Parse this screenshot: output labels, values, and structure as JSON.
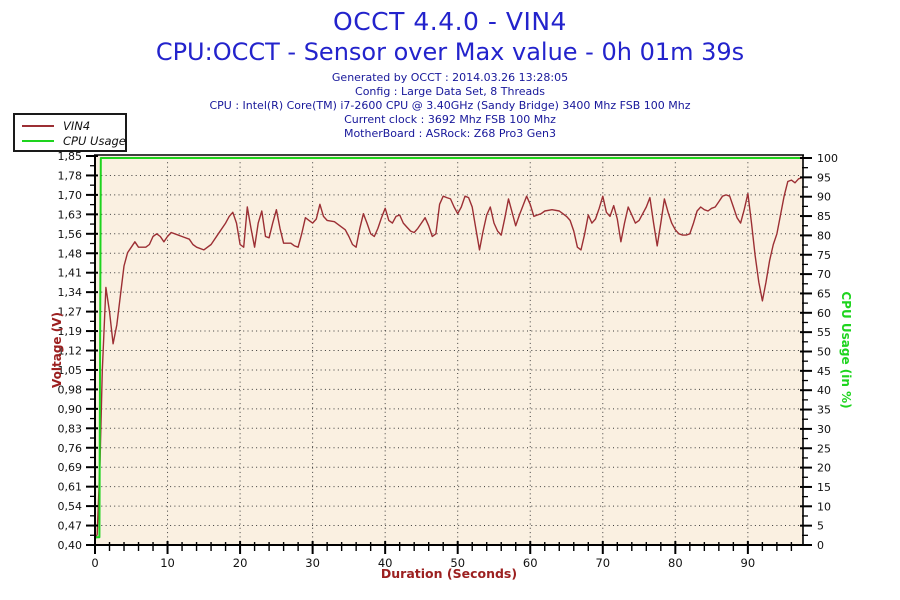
{
  "header": {
    "title": "OCCT 4.4.0 - VIN4",
    "subtitle": "CPU:OCCT - Sensor over Max value - 0h 01m 39s",
    "info_lines": [
      "Generated by OCCT : 2014.03.26 13:28:05",
      "Config : Large Data Set, 8 Threads",
      "CPU : Intel(R) Core(TM) i7-2600 CPU @ 3.40GHz (Sandy Bridge) 3400 Mhz FSB 100 Mhz",
      "Current clock : 3692 Mhz FSB 100 Mhz",
      "MotherBoard : ASRock: Z68 Pro3 Gen3"
    ]
  },
  "legend": {
    "items": [
      {
        "label": "VIN4",
        "color": "#9c2f34"
      },
      {
        "label": "CPU Usage",
        "color": "#1ed41e"
      }
    ]
  },
  "colors": {
    "title_blue": "#2323cc",
    "info_navy": "#17179a",
    "plot_bg": "#faf0e1",
    "grid": "#3c3c3c",
    "axis_black": "#000000",
    "tick_text": "#111111",
    "axis_label_red": "#9c2020",
    "vin4_red": "#9c2f34",
    "cpu_green": "#1ed41e"
  },
  "chart_data": {
    "type": "line",
    "title": "OCCT 4.4.0 - VIN4",
    "xlabel": "Duration (Seconds)",
    "ylabel_left": "Voltage (V)",
    "ylabel_right": "CPU Usage (in %)",
    "grid": "dotted",
    "legend_position": "top-left",
    "xlim": [
      0,
      97.6
    ],
    "x_major_ticks": [
      0,
      10,
      20,
      30,
      40,
      50,
      60,
      70,
      80,
      90
    ],
    "x_tick_labels": [
      "0",
      "10",
      "20",
      "30",
      "40",
      "50",
      "60",
      "70",
      "80",
      "90"
    ],
    "x_minor_step": 2,
    "left_axis": {
      "min": 0.4,
      "max": 1.85,
      "tick_labels": [
        "1,85",
        "1,78",
        "1,70",
        "1,63",
        "1,56",
        "1,48",
        "1,41",
        "1,34",
        "1,27",
        "1,19",
        "1,12",
        "1,05",
        "0,98",
        "0,90",
        "0,83",
        "0,76",
        "0,69",
        "0,61",
        "0,54",
        "0,47",
        "0,40"
      ]
    },
    "right_axis": {
      "min": 0,
      "max": 100,
      "tick_labels": [
        "100",
        "95",
        "90",
        "85",
        "80",
        "75",
        "70",
        "65",
        "60",
        "55",
        "50",
        "45",
        "40",
        "35",
        "30",
        "25",
        "20",
        "15",
        "10",
        "5",
        "0"
      ]
    },
    "series": [
      {
        "name": "VIN4",
        "axis": "left",
        "color": "#9c2f34",
        "width": 1.4,
        "points": [
          [
            0,
            0.42
          ],
          [
            0.3,
            0.44
          ],
          [
            0.7,
            0.72
          ],
          [
            1,
            1.05
          ],
          [
            1.5,
            1.36
          ],
          [
            2,
            1.27
          ],
          [
            2.5,
            1.15
          ],
          [
            3,
            1.22
          ],
          [
            3.5,
            1.33
          ],
          [
            4,
            1.44
          ],
          [
            4.5,
            1.49
          ],
          [
            5,
            1.51
          ],
          [
            5.5,
            1.53
          ],
          [
            6,
            1.51
          ],
          [
            7,
            1.51
          ],
          [
            7.5,
            1.52
          ],
          [
            8,
            1.55
          ],
          [
            8.5,
            1.56
          ],
          [
            9,
            1.55
          ],
          [
            9.5,
            1.53
          ],
          [
            10,
            1.55
          ],
          [
            10.5,
            1.565
          ],
          [
            11,
            1.56
          ],
          [
            12,
            1.55
          ],
          [
            13,
            1.54
          ],
          [
            13.5,
            1.52
          ],
          [
            14,
            1.51
          ],
          [
            15,
            1.5
          ],
          [
            16,
            1.52
          ],
          [
            17,
            1.56
          ],
          [
            18,
            1.6
          ],
          [
            18.5,
            1.625
          ],
          [
            19,
            1.64
          ],
          [
            19.5,
            1.6
          ],
          [
            20,
            1.52
          ],
          [
            20.5,
            1.51
          ],
          [
            21,
            1.66
          ],
          [
            21.5,
            1.58
          ],
          [
            22,
            1.51
          ],
          [
            22.5,
            1.6
          ],
          [
            23,
            1.645
          ],
          [
            23.5,
            1.55
          ],
          [
            24,
            1.545
          ],
          [
            24.5,
            1.6
          ],
          [
            25,
            1.65
          ],
          [
            25.5,
            1.58
          ],
          [
            26,
            1.525
          ],
          [
            27,
            1.525
          ],
          [
            27.5,
            1.515
          ],
          [
            28,
            1.51
          ],
          [
            28.5,
            1.56
          ],
          [
            29,
            1.62
          ],
          [
            29.5,
            1.61
          ],
          [
            30,
            1.6
          ],
          [
            30.5,
            1.615
          ],
          [
            31,
            1.67
          ],
          [
            31.5,
            1.625
          ],
          [
            32,
            1.61
          ],
          [
            33,
            1.605
          ],
          [
            34,
            1.585
          ],
          [
            34.5,
            1.575
          ],
          [
            35,
            1.55
          ],
          [
            35.5,
            1.52
          ],
          [
            36,
            1.51
          ],
          [
            36.5,
            1.58
          ],
          [
            37,
            1.635
          ],
          [
            37.5,
            1.6
          ],
          [
            38,
            1.56
          ],
          [
            38.5,
            1.55
          ],
          [
            39,
            1.58
          ],
          [
            39.5,
            1.62
          ],
          [
            40,
            1.655
          ],
          [
            40.5,
            1.61
          ],
          [
            41,
            1.6
          ],
          [
            41.5,
            1.625
          ],
          [
            42,
            1.63
          ],
          [
            42.5,
            1.6
          ],
          [
            43,
            1.585
          ],
          [
            43.5,
            1.57
          ],
          [
            44,
            1.565
          ],
          [
            44.5,
            1.58
          ],
          [
            45,
            1.6
          ],
          [
            45.5,
            1.62
          ],
          [
            46,
            1.59
          ],
          [
            46.5,
            1.55
          ],
          [
            47,
            1.56
          ],
          [
            47.5,
            1.67
          ],
          [
            48,
            1.7
          ],
          [
            48.5,
            1.695
          ],
          [
            49,
            1.69
          ],
          [
            49.5,
            1.66
          ],
          [
            50,
            1.635
          ],
          [
            50.5,
            1.66
          ],
          [
            51,
            1.7
          ],
          [
            51.5,
            1.695
          ],
          [
            52,
            1.66
          ],
          [
            52.5,
            1.58
          ],
          [
            53,
            1.5
          ],
          [
            53.5,
            1.57
          ],
          [
            54,
            1.63
          ],
          [
            54.5,
            1.66
          ],
          [
            55,
            1.6
          ],
          [
            55.5,
            1.57
          ],
          [
            56,
            1.555
          ],
          [
            56.5,
            1.62
          ],
          [
            57,
            1.69
          ],
          [
            57.5,
            1.64
          ],
          [
            58,
            1.59
          ],
          [
            58.5,
            1.63
          ],
          [
            59,
            1.665
          ],
          [
            59.5,
            1.7
          ],
          [
            60,
            1.67
          ],
          [
            60.5,
            1.625
          ],
          [
            61,
            1.63
          ],
          [
            61.5,
            1.635
          ],
          [
            62,
            1.645
          ],
          [
            63,
            1.65
          ],
          [
            64,
            1.645
          ],
          [
            64.5,
            1.635
          ],
          [
            65,
            1.625
          ],
          [
            65.5,
            1.61
          ],
          [
            66,
            1.57
          ],
          [
            66.5,
            1.51
          ],
          [
            67,
            1.5
          ],
          [
            67.5,
            1.56
          ],
          [
            68,
            1.63
          ],
          [
            68.5,
            1.6
          ],
          [
            69,
            1.615
          ],
          [
            69.5,
            1.655
          ],
          [
            70,
            1.7
          ],
          [
            70.5,
            1.64
          ],
          [
            71,
            1.625
          ],
          [
            71.5,
            1.665
          ],
          [
            72,
            1.615
          ],
          [
            72.5,
            1.53
          ],
          [
            73,
            1.6
          ],
          [
            73.5,
            1.66
          ],
          [
            74,
            1.63
          ],
          [
            74.5,
            1.6
          ],
          [
            75,
            1.61
          ],
          [
            75.5,
            1.635
          ],
          [
            76,
            1.66
          ],
          [
            76.5,
            1.695
          ],
          [
            77,
            1.6
          ],
          [
            77.5,
            1.515
          ],
          [
            78,
            1.6
          ],
          [
            78.5,
            1.69
          ],
          [
            79,
            1.64
          ],
          [
            79.5,
            1.6
          ],
          [
            80,
            1.575
          ],
          [
            80.5,
            1.56
          ],
          [
            81,
            1.555
          ],
          [
            81.5,
            1.555
          ],
          [
            82,
            1.56
          ],
          [
            82.5,
            1.6
          ],
          [
            83,
            1.645
          ],
          [
            83.5,
            1.66
          ],
          [
            84,
            1.65
          ],
          [
            84.5,
            1.645
          ],
          [
            85,
            1.655
          ],
          [
            85.5,
            1.66
          ],
          [
            86,
            1.68
          ],
          [
            86.5,
            1.7
          ],
          [
            87,
            1.705
          ],
          [
            87.5,
            1.7
          ],
          [
            88,
            1.66
          ],
          [
            88.5,
            1.62
          ],
          [
            89,
            1.6
          ],
          [
            89.5,
            1.65
          ],
          [
            90,
            1.71
          ],
          [
            90.5,
            1.6
          ],
          [
            91,
            1.48
          ],
          [
            91.5,
            1.38
          ],
          [
            92,
            1.31
          ],
          [
            92.5,
            1.38
          ],
          [
            93,
            1.46
          ],
          [
            93.5,
            1.52
          ],
          [
            94,
            1.56
          ],
          [
            94.5,
            1.63
          ],
          [
            95,
            1.7
          ],
          [
            95.5,
            1.755
          ],
          [
            96,
            1.76
          ],
          [
            96.5,
            1.75
          ],
          [
            97,
            1.765
          ],
          [
            97.5,
            1.77
          ]
        ]
      },
      {
        "name": "CPU Usage",
        "axis": "right",
        "color": "#1ed41e",
        "width": 2,
        "points": [
          [
            0,
            2
          ],
          [
            0.6,
            2
          ],
          [
            0.8,
            100
          ],
          [
            97.5,
            100
          ]
        ]
      }
    ]
  }
}
